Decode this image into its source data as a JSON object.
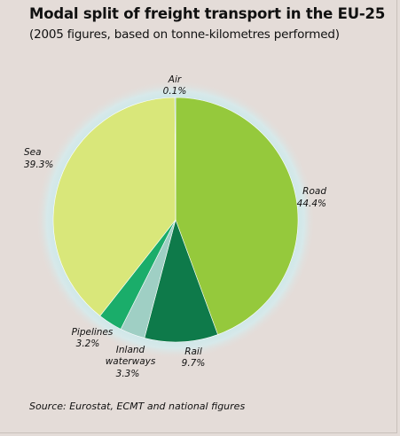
{
  "title": "Modal split of freight transport in the EU-25",
  "subtitle": "(2005 figures, based on tonne-kilometres performed)",
  "source": "Source: Eurostat, ECMT and national figures",
  "chart_data": {
    "type": "pie",
    "title": "Modal split of freight transport in the EU-25",
    "unit": "%",
    "slices": [
      {
        "label": "Road",
        "value": 44.4,
        "value_label": "44.4%",
        "color": "#95c93c"
      },
      {
        "label": "Rail",
        "value": 9.7,
        "value_label": "9.7%",
        "color": "#0e7a4a"
      },
      {
        "label": "Inland waterways",
        "value": 3.3,
        "value_label": "3.3%",
        "color": "#9fcfc4"
      },
      {
        "label": "Pipelines",
        "value": 3.2,
        "value_label": "3.2%",
        "color": "#1aad6a"
      },
      {
        "label": "Sea",
        "value": 39.3,
        "value_label": "39.3%",
        "color": "#d9e77a"
      },
      {
        "label": "Air",
        "value": 0.1,
        "value_label": "0.1%",
        "color": "#2b7fa8"
      }
    ]
  }
}
